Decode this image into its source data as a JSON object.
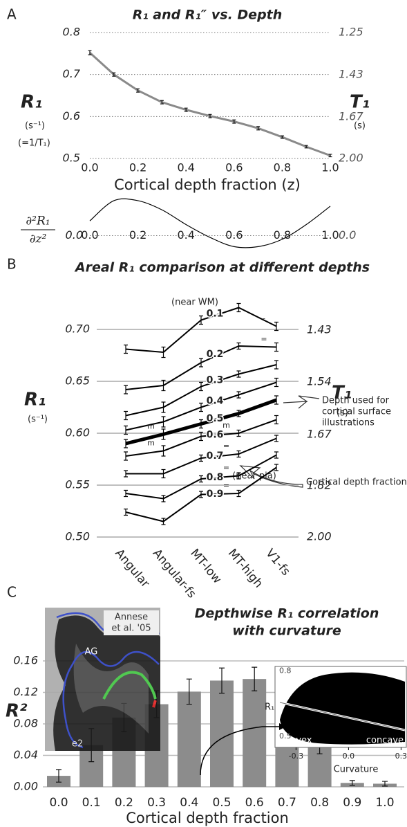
{
  "panel_labels": [
    "A",
    "B",
    "C"
  ],
  "chart_data": [
    {
      "type": "line",
      "title": "R₁ and R₁″ vs. Depth",
      "x": [
        0,
        0.1,
        0.2,
        0.3,
        0.4,
        0.5,
        0.6,
        0.7,
        0.8,
        0.9,
        1.0
      ],
      "values": [
        0.752,
        0.7,
        0.662,
        0.634,
        0.616,
        0.601,
        0.588,
        0.572,
        0.551,
        0.528,
        0.507
      ],
      "errors": [
        0.005,
        0.004,
        0.004,
        0.004,
        0.004,
        0.004,
        0.004,
        0.004,
        0.003,
        0.003,
        0.003
      ],
      "color": "#8a8a8a",
      "xlim": [
        0,
        1
      ],
      "xticks": [
        {
          "value": 0,
          "label": "0.0"
        },
        0.2,
        0.4,
        0.6,
        0.8,
        {
          "value": 1,
          "label": "1.0"
        }
      ],
      "ylim": [
        0.5,
        0.8
      ],
      "yticks": [
        0.5,
        0.6,
        0.7,
        0.8
      ],
      "y2scale": "reciprocal",
      "y2lim": [
        2,
        1.25
      ],
      "y2ticks": [
        1.25,
        1.43,
        1.67,
        {
          "value": 2,
          "label": "2.00"
        }
      ],
      "grid": true,
      "xlabel": "Cortical depth fraction (z)",
      "ylabel": "R₁",
      "ylabel_unit": "(s⁻¹)",
      "ylabel_note": "(=1/T₁)",
      "y2label": "T₁",
      "y2label_unit": "(s)"
    },
    {
      "type": "line",
      "x": [
        0,
        0.1,
        0.2,
        0.3,
        0.4,
        0.5,
        0.6,
        0.7,
        0.8,
        0.9,
        1.0
      ],
      "values": [
        0.4,
        0.95,
        0.95,
        0.7,
        0.3,
        -0.05,
        -0.3,
        -0.3,
        -0.1,
        0.3,
        0.8
      ],
      "color": "#000000",
      "xlim": [
        0,
        1
      ],
      "xticks": [
        {
          "value": 0,
          "label": "0.0"
        },
        0.2,
        0.4,
        0.6,
        0.8,
        {
          "value": 1,
          "label": "1.0"
        }
      ],
      "ylim": [
        -0.5,
        1.1
      ],
      "yticks": [
        {
          "value": 0,
          "label": "0.0"
        }
      ],
      "y2ticks": [
        {
          "value": 0,
          "label": "0.0"
        }
      ],
      "grid": true,
      "ylabel_numerator": "∂²R₁",
      "ylabel_denominator": "∂z²"
    },
    {
      "type": "multiline",
      "title": "Areal R₁ comparison at different depths",
      "categories": [
        "Angular",
        "Angular-fs",
        "MT-low",
        "MT-high",
        "V1-fs"
      ],
      "series": [
        {
          "name": "0.1",
          "color": "#000000",
          "values": [
            0.681,
            0.678,
            0.709,
            0.721,
            0.703
          ],
          "errors": [
            0.004,
            0.005,
            0.004,
            0.004,
            0.004
          ],
          "sig_labels": [
            null,
            null,
            null,
            null,
            "-"
          ]
        },
        {
          "name": "0.2",
          "color": "#000000",
          "values": [
            0.642,
            0.646,
            0.668,
            0.684,
            0.683
          ],
          "errors": [
            0.004,
            0.005,
            0.004,
            0.003,
            0.004
          ],
          "sig_labels": [
            null,
            null,
            null,
            null,
            "="
          ]
        },
        {
          "name": "0.3",
          "color": "#000000",
          "values": [
            0.617,
            0.625,
            0.645,
            0.657,
            0.666
          ],
          "errors": [
            0.004,
            0.005,
            0.004,
            0.003,
            0.004
          ],
          "sig_labels": [
            null,
            null,
            null,
            null,
            null
          ]
        },
        {
          "name": "0.4",
          "color": "#000000",
          "values": [
            0.603,
            0.611,
            0.625,
            0.637,
            0.649
          ],
          "errors": [
            0.004,
            0.005,
            0.004,
            0.003,
            0.004
          ],
          "sig_labels": [
            null,
            null,
            null,
            null,
            null
          ]
        },
        {
          "name": "0.5",
          "color": "#000000",
          "values": [
            0.59,
            0.599,
            0.609,
            0.619,
            0.632
          ],
          "errors": [
            0.004,
            0.005,
            0.004,
            0.003,
            0.004
          ],
          "sig_labels": [
            null,
            "m",
            null,
            null,
            null
          ]
        },
        {
          "name": "0.6",
          "color": "#000000",
          "values": [
            0.578,
            0.583,
            0.597,
            0.6,
            0.613
          ],
          "errors": [
            0.004,
            0.005,
            0.004,
            0.003,
            0.004
          ],
          "sig_labels": [
            null,
            "m",
            null,
            "m",
            null
          ]
        },
        {
          "name": "0.7",
          "color": "#000000",
          "values": [
            0.561,
            0.561,
            0.576,
            0.58,
            0.595
          ],
          "errors": [
            0.003,
            0.004,
            0.003,
            0.003,
            0.003
          ],
          "sig_labels": [
            null,
            null,
            null,
            "=",
            null
          ]
        },
        {
          "name": "0.8",
          "color": "#000000",
          "values": [
            0.542,
            0.537,
            0.556,
            0.559,
            0.579
          ],
          "errors": [
            0.003,
            0.003,
            0.003,
            0.003,
            0.003
          ],
          "sig_labels": [
            null,
            null,
            null,
            "=",
            null
          ]
        },
        {
          "name": "0.9",
          "color": "#000000",
          "values": [
            0.524,
            0.515,
            0.541,
            0.542,
            0.567
          ],
          "errors": [
            0.003,
            0.003,
            0.003,
            0.003,
            0.003
          ],
          "sig_labels": [
            null,
            null,
            null,
            "=",
            null
          ]
        }
      ],
      "ylim": [
        0.5,
        0.73
      ],
      "yticks": [
        {
          "value": 0.5,
          "label": "0.50"
        },
        0.55,
        {
          "value": 0.6,
          "label": "0.60"
        },
        0.65,
        {
          "value": 0.7,
          "label": "0.70"
        }
      ],
      "y2scale": "reciprocal",
      "y2lim": [
        2,
        1.37
      ],
      "y2ticks": [
        {
          "value": 2,
          "label": "2.00"
        },
        1.82,
        1.67,
        1.54,
        1.43
      ],
      "grid": true,
      "ylabel": "R₁",
      "ylabel_unit": "(s⁻¹)",
      "y2label": "T₁",
      "y2label_unit": "(s)",
      "near_wm": "(near WM)",
      "near_pia": "(near pia)",
      "arrow_note": [
        "Depth used for",
        "cortical surface",
        "illustrations"
      ],
      "depth_note": "Cortical depth fraction"
    },
    {
      "type": "bar",
      "title": [
        "Depthwise R₁ correlation",
        "with curvature"
      ],
      "categories": [
        "0.0",
        "0.1",
        "0.2",
        "0.3",
        "0.4",
        "0.5",
        "0.6",
        "0.7",
        "0.8",
        "0.9",
        "1.0"
      ],
      "values": [
        0.014,
        0.053,
        0.088,
        0.105,
        0.121,
        0.135,
        0.137,
        0.112,
        0.05,
        0.005,
        0.004
      ],
      "errors": [
        0.008,
        0.021,
        0.018,
        0.017,
        0.016,
        0.016,
        0.015,
        0.012,
        0.008,
        0.003,
        0.003
      ],
      "color": "#8c8c8c",
      "ylim": [
        0,
        0.18
      ],
      "yticks": [
        {
          "value": 0,
          "label": "0.00"
        },
        0.04,
        0.08,
        0.12,
        0.16
      ],
      "grid": true,
      "xlabel": "Cortical depth fraction",
      "ylabel": "R²",
      "inset_image": {
        "credit": [
          "Annese",
          "et al. '05"
        ],
        "labels": [
          "AG",
          "e2"
        ]
      },
      "inset_scatter": {
        "ylabel": "R₁",
        "ylim": [
          0.45,
          0.82
        ],
        "yticks": [
          0.5,
          0.8
        ],
        "xlim": [
          -0.42,
          0.33
        ],
        "xticks": [
          -0.3,
          {
            "value": 0,
            "label": "0.0"
          },
          0.3
        ],
        "xlabel": "Curvature",
        "left_label": "convex",
        "right_label": "concave"
      }
    }
  ]
}
